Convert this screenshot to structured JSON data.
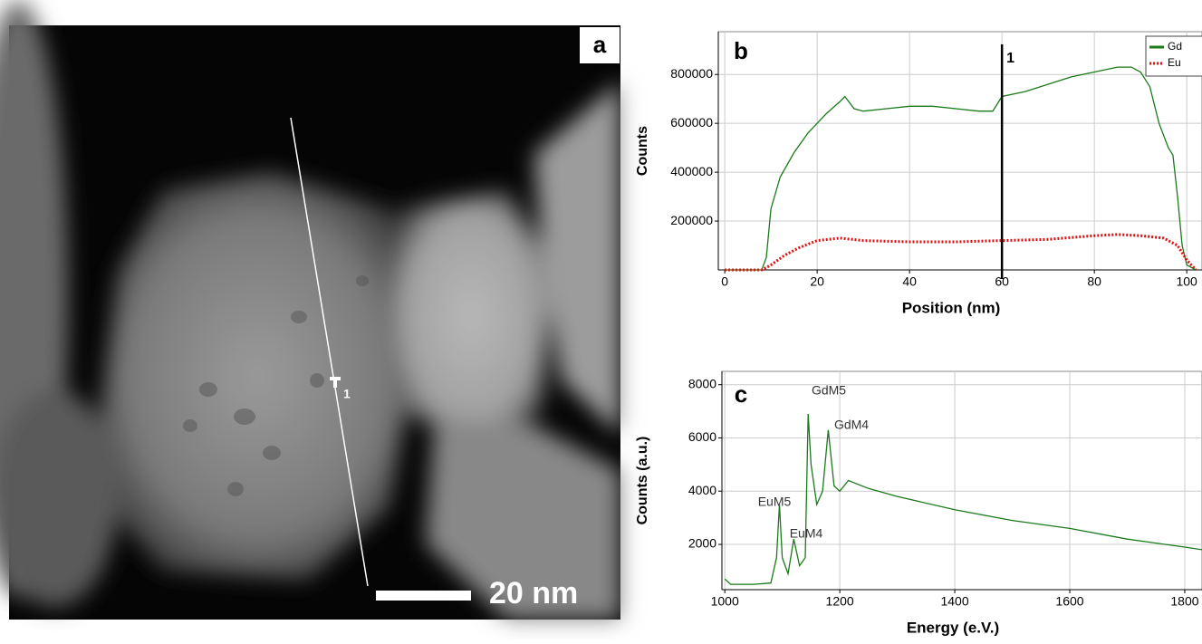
{
  "panel_a": {
    "label": "a",
    "marker": "1",
    "scale_bar": "20 nm"
  },
  "chart_data": [
    {
      "type": "line",
      "label": "b",
      "ylabel": "Counts",
      "xlabel": "Position (nm)",
      "xlim": [
        -1.4,
        103.3
      ],
      "xticks": [
        0,
        20,
        40,
        60,
        80,
        100
      ],
      "ylim": [
        0,
        975000
      ],
      "yticks": [
        200000,
        400000,
        600000,
        800000
      ],
      "grid": true,
      "legend": "top-right",
      "annotation": {
        "x": 60,
        "text": "1"
      },
      "series": [
        {
          "name": "Gd",
          "color": "#1a7a1a",
          "style": "solid",
          "x": [
            0,
            5,
            8,
            9,
            10,
            12,
            15,
            18,
            20,
            22,
            25,
            26,
            28,
            30,
            35,
            40,
            45,
            50,
            55,
            58,
            59,
            60,
            65,
            70,
            75,
            80,
            85,
            88,
            90,
            92,
            94,
            96,
            97,
            98,
            99,
            100,
            102
          ],
          "values": [
            0,
            0,
            0,
            50000,
            250000,
            380000,
            480000,
            560000,
            600000,
            640000,
            690000,
            710000,
            660000,
            650000,
            660000,
            670000,
            670000,
            660000,
            650000,
            650000,
            680000,
            710000,
            730000,
            760000,
            790000,
            810000,
            830000,
            830000,
            810000,
            750000,
            600000,
            500000,
            470000,
            300000,
            100000,
            20000,
            0
          ]
        },
        {
          "name": "Eu",
          "color": "#e01010",
          "style": "dotted",
          "x": [
            0,
            8,
            10,
            13,
            16,
            20,
            25,
            30,
            40,
            50,
            60,
            70,
            80,
            85,
            90,
            95,
            98,
            100,
            102
          ],
          "values": [
            0,
            0,
            20000,
            60000,
            90000,
            120000,
            130000,
            120000,
            115000,
            115000,
            120000,
            125000,
            140000,
            145000,
            140000,
            130000,
            100000,
            40000,
            0
          ]
        }
      ]
    },
    {
      "type": "line",
      "label": "c",
      "ylabel": "Counts (a.u.)",
      "xlabel": "Energy (e.V.)",
      "xlim": [
        995,
        1830
      ],
      "xticks": [
        1000,
        1200,
        1400,
        1600,
        1800
      ],
      "ylim": [
        300,
        8500
      ],
      "yticks": [
        2000,
        4000,
        6000,
        8000
      ],
      "grid": true,
      "annotations": [
        "GdM5",
        "GdM4",
        "EuM5",
        "EuM4"
      ],
      "series": [
        {
          "color": "#1a7a1a",
          "style": "solid",
          "x": [
            1000,
            1010,
            1050,
            1080,
            1090,
            1095,
            1100,
            1110,
            1120,
            1130,
            1140,
            1145,
            1150,
            1160,
            1170,
            1180,
            1190,
            1200,
            1215,
            1250,
            1300,
            1400,
            1500,
            1600,
            1700,
            1800,
            1830
          ],
          "values": [
            700,
            500,
            500,
            550,
            1500,
            3500,
            1500,
            900,
            2200,
            1200,
            1500,
            6900,
            5000,
            3500,
            4000,
            6300,
            4200,
            4000,
            4400,
            4100,
            3800,
            3300,
            2900,
            2600,
            2200,
            1900,
            1800
          ]
        }
      ]
    }
  ]
}
